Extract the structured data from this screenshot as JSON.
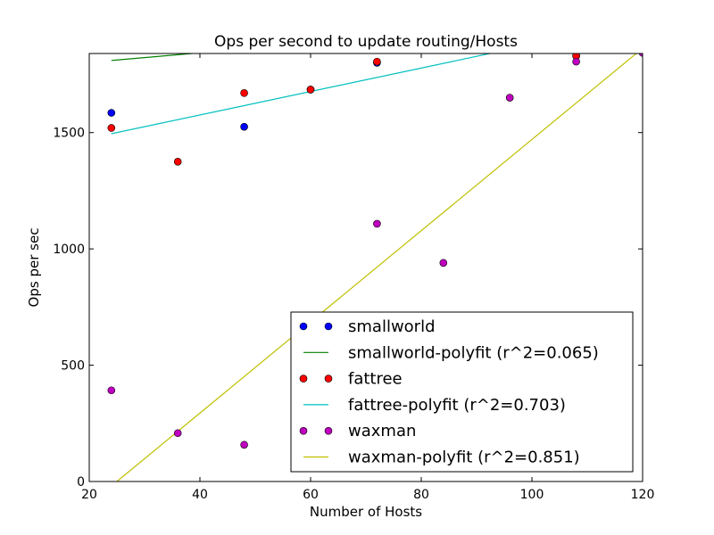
{
  "chart_data": {
    "type": "scatter",
    "title": "Ops per second to update routing/Hosts",
    "xlabel": "Number of Hosts",
    "ylabel": "Ops per sec",
    "xlim": [
      20,
      120
    ],
    "ylim": [
      0,
      1840
    ],
    "xticks": [
      20,
      40,
      60,
      80,
      100,
      120
    ],
    "yticks": [
      0,
      500,
      1000,
      1500
    ],
    "grid": false,
    "legend_position": "lower-right",
    "series": [
      {
        "name": "smallworld",
        "kind": "points",
        "color": "#0000ff",
        "x": [
          24,
          48,
          60,
          72,
          108
        ],
        "y": [
          1585,
          1525,
          1685,
          1800,
          1830
        ]
      },
      {
        "name": "smallworld-polyfit (r^2=0.065)",
        "kind": "line",
        "color": "#008000",
        "x": [
          24,
          40
        ],
        "y": [
          1810,
          1843
        ]
      },
      {
        "name": "fattree",
        "kind": "points",
        "color": "#ff0000",
        "x": [
          24,
          36,
          48,
          60,
          72,
          108
        ],
        "y": [
          1520,
          1375,
          1670,
          1685,
          1805,
          1830
        ]
      },
      {
        "name": "fattree-polyfit (r^2=0.703)",
        "kind": "line",
        "color": "#00bfbf",
        "x": [
          24,
          93
        ],
        "y": [
          1495,
          1843
        ]
      },
      {
        "name": "waxman",
        "kind": "points",
        "color": "#bf00bf",
        "x": [
          24,
          36,
          48,
          72,
          84,
          96,
          108,
          120
        ],
        "y": [
          392,
          208,
          158,
          1108,
          940,
          1650,
          1805,
          1843
        ]
      },
      {
        "name": "waxman-polyfit (r^2=0.851)",
        "kind": "line",
        "color": "#bfbf00",
        "x": [
          25,
          119
        ],
        "y": [
          0,
          1843
        ]
      }
    ]
  }
}
